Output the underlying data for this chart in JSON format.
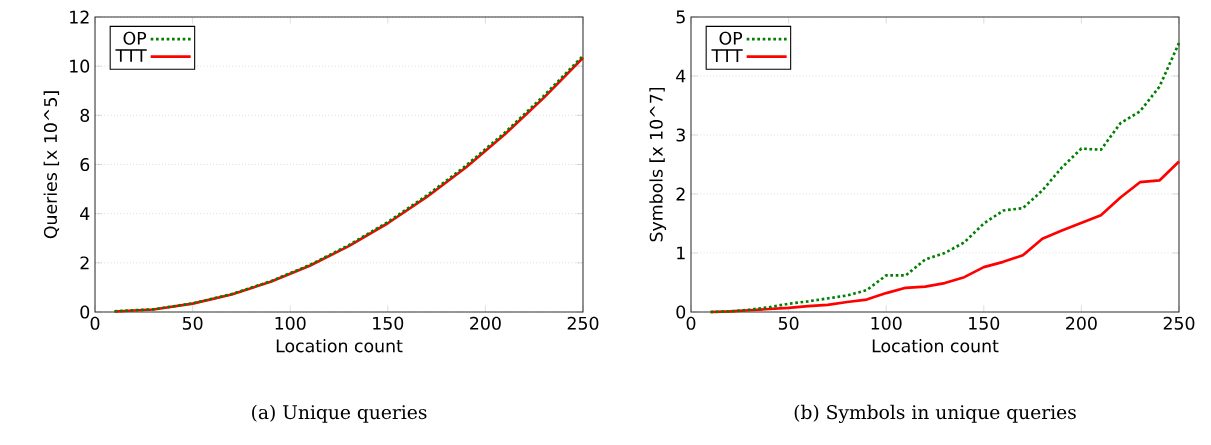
{
  "chart_data": [
    {
      "type": "line",
      "xlabel": "Location count",
      "ylabel": "Queries [x 10^5]",
      "annotations": [
        "(a) Unique queries"
      ],
      "x": [
        10,
        30,
        50,
        70,
        90,
        110,
        130,
        150,
        170,
        190,
        210,
        230,
        250
      ],
      "xlim": [
        0,
        250
      ],
      "xticks": [
        0,
        50,
        100,
        150,
        200,
        250
      ],
      "ylim": [
        0,
        12
      ],
      "yticks": [
        0,
        2,
        4,
        6,
        8,
        10,
        12
      ],
      "grid": "y",
      "legend": "top left",
      "series": [
        {
          "name": "OP",
          "color": "#008000",
          "line_style": "dashed",
          "values": [
            0.03,
            0.11,
            0.35,
            0.73,
            1.25,
            1.91,
            2.72,
            3.66,
            4.74,
            5.95,
            7.3,
            8.8,
            10.42
          ]
        },
        {
          "name": "TTT",
          "color": "#ff0000",
          "line_style": "solid",
          "values": [
            0.02,
            0.1,
            0.34,
            0.71,
            1.23,
            1.88,
            2.68,
            3.61,
            4.68,
            5.88,
            7.23,
            8.72,
            10.34
          ]
        }
      ]
    },
    {
      "type": "line",
      "xlabel": "Location count",
      "ylabel": "Symbols [x 10^7]",
      "annotations": [
        "(b) Symbols in unique queries"
      ],
      "x": [
        10,
        20,
        30,
        40,
        50,
        60,
        70,
        80,
        90,
        100,
        110,
        120,
        130,
        140,
        150,
        160,
        170,
        180,
        190,
        200,
        210,
        220,
        230,
        240,
        250
      ],
      "xlim": [
        0,
        250
      ],
      "xticks": [
        0,
        50,
        100,
        150,
        200,
        250
      ],
      "ylim": [
        0,
        5
      ],
      "yticks": [
        0,
        1,
        2,
        3,
        4,
        5
      ],
      "grid": "y",
      "legend": "top left",
      "series": [
        {
          "name": "OP",
          "color": "#008000",
          "line_style": "dashed",
          "values": [
            0,
            0.01,
            0.04,
            0.08,
            0.14,
            0.18,
            0.23,
            0.28,
            0.37,
            0.62,
            0.62,
            0.89,
            1.0,
            1.18,
            1.5,
            1.72,
            1.76,
            2.06,
            2.45,
            2.77,
            2.75,
            3.2,
            3.4,
            3.82,
            4.56
          ]
        },
        {
          "name": "TTT",
          "color": "#ff0000",
          "line_style": "solid",
          "values": [
            0,
            0.01,
            0.03,
            0.05,
            0.07,
            0.1,
            0.12,
            0.17,
            0.21,
            0.32,
            0.41,
            0.43,
            0.49,
            0.59,
            0.76,
            0.85,
            0.96,
            1.24,
            1.38,
            1.51,
            1.64,
            1.94,
            2.2,
            2.23,
            2.55
          ]
        }
      ]
    }
  ]
}
